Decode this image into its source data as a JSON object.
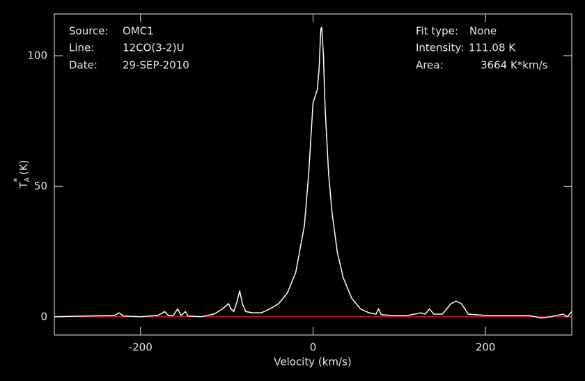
{
  "chart_data": {
    "type": "line",
    "xlabel": "Velocity (km/s)",
    "ylabel": {
      "symbol": "T",
      "subscript": "A",
      "superscript": "*",
      "unit": "(K)"
    },
    "xlim": [
      -300,
      300
    ],
    "ylim": [
      -7,
      116
    ],
    "xticks": [
      -200,
      0,
      200
    ],
    "yticks": [
      0,
      50,
      100
    ],
    "baseline": {
      "value": 0,
      "color": "#ff2020"
    },
    "annotations": {
      "left": [
        [
          "Source:",
          "OMC1"
        ],
        [
          "Line:",
          "12CO(3-2)U"
        ],
        [
          "Date:",
          "29-SEP-2010"
        ]
      ],
      "right": [
        [
          "Fit type:",
          "None"
        ],
        [
          "Intensity:",
          "111.08 K"
        ],
        [
          "Area:",
          "3664 K*km/s"
        ]
      ]
    },
    "x": [
      -300,
      -260,
      -230,
      -225,
      -220,
      -200,
      -180,
      -172,
      -168,
      -162,
      -157,
      -153,
      -148,
      -145,
      -130,
      -115,
      -105,
      -98,
      -95,
      -92,
      -88,
      -85,
      -82,
      -78,
      -70,
      -60,
      -50,
      -40,
      -30,
      -20,
      -10,
      -5,
      0,
      3,
      5,
      7,
      9,
      10,
      12,
      14,
      18,
      22,
      28,
      35,
      45,
      55,
      65,
      73,
      76,
      79,
      90,
      110,
      125,
      130,
      135,
      140,
      150,
      160,
      166,
      172,
      180,
      200,
      230,
      250,
      265,
      275,
      290,
      295,
      300
    ],
    "series": [
      {
        "color": "#ffffff",
        "values": [
          0,
          0.3,
          0.5,
          1.5,
          0.3,
          0,
          0.5,
          2,
          0.5,
          0.5,
          3,
          0.5,
          2,
          0.3,
          0,
          1,
          3,
          5,
          3,
          2,
          6,
          10,
          5,
          2,
          1.5,
          1.5,
          3,
          5,
          9,
          17,
          35,
          55,
          82,
          85,
          87,
          95,
          110,
          111,
          100,
          80,
          55,
          40,
          25,
          15,
          7,
          3,
          1.5,
          1,
          3,
          0.8,
          0.5,
          0.5,
          1.5,
          1,
          3,
          1,
          1,
          5,
          6,
          5,
          1,
          0.5,
          0.5,
          0.5,
          -0.5,
          0,
          1,
          0,
          2
        ]
      }
    ]
  }
}
